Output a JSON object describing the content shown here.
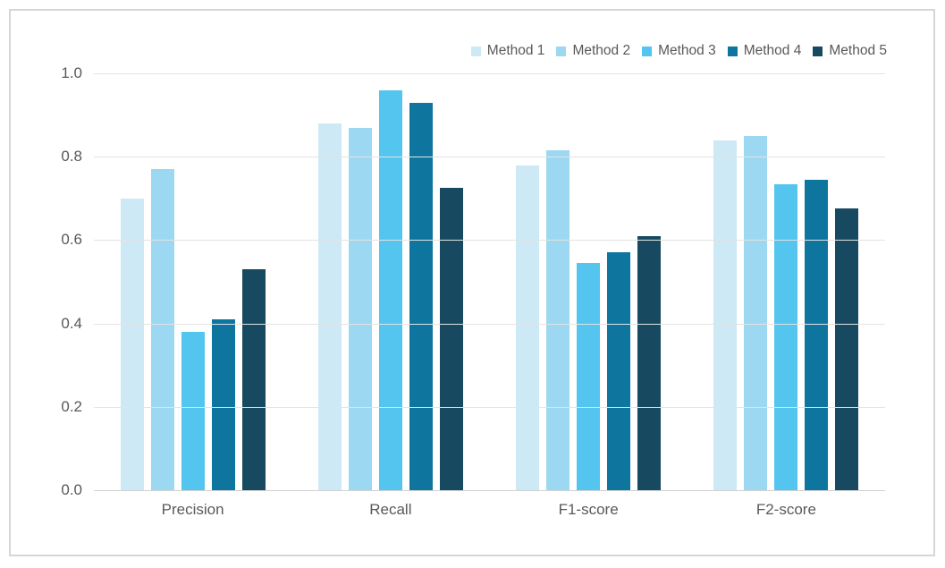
{
  "chart_data": {
    "type": "bar",
    "title": "",
    "categories": [
      "Precision",
      "Recall",
      "F1-score",
      "F2-score"
    ],
    "series": [
      {
        "name": "Method 1",
        "color": "#cde9f6",
        "values": [
          0.7,
          0.88,
          0.78,
          0.84
        ]
      },
      {
        "name": "Method 2",
        "color": "#9cd8f1",
        "values": [
          0.77,
          0.87,
          0.815,
          0.85
        ]
      },
      {
        "name": "Method 3",
        "color": "#53c5ef",
        "values": [
          0.38,
          0.96,
          0.545,
          0.735
        ]
      },
      {
        "name": "Method 4",
        "color": "#0e759f",
        "values": [
          0.41,
          0.93,
          0.57,
          0.745
        ]
      },
      {
        "name": "Method 5",
        "color": "#174a61",
        "values": [
          0.53,
          0.725,
          0.61,
          0.675
        ]
      }
    ],
    "y_ticks": [
      "1.0",
      "0.8",
      "0.6",
      "0.4",
      "0.2",
      "0.0"
    ],
    "y_tick_values": [
      1.0,
      0.8,
      0.6,
      0.4,
      0.2,
      0.0
    ],
    "ylim": [
      0,
      1
    ],
    "grid": true,
    "legend_position": "top-right",
    "xlabel": "",
    "ylabel": ""
  },
  "styles": {
    "text_color": "#595959",
    "grid_color": "#e3e3e3",
    "axis_color": "#d2d2d2",
    "frame_border_color": "#d6d6d6",
    "background": "#ffffff"
  }
}
